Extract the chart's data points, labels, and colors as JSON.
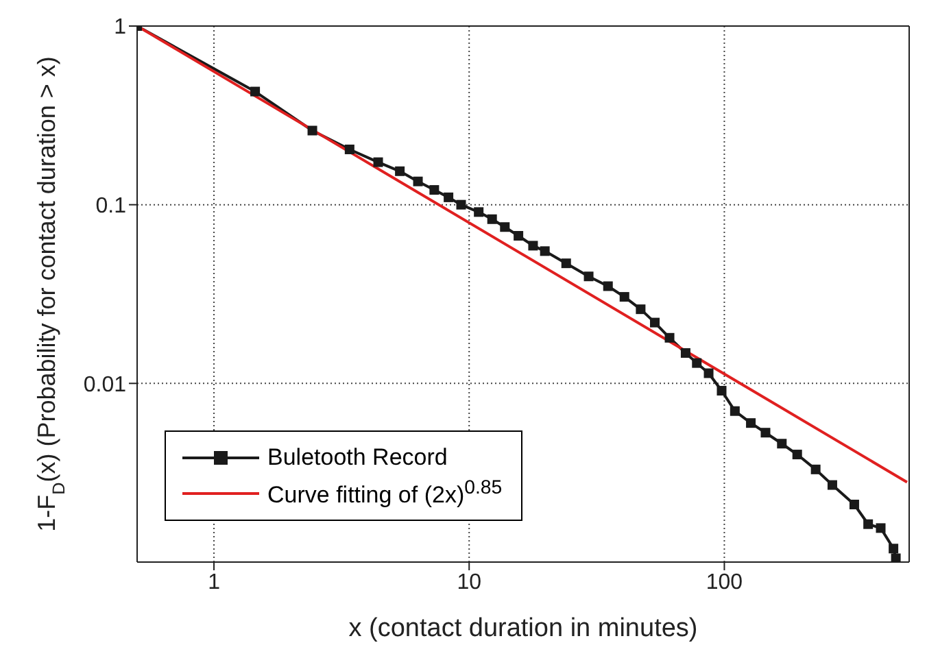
{
  "chart_data": {
    "type": "line",
    "xlabel": "x (contact duration in minutes)",
    "ylabel": "1-F$_{D}$(x)   (Probability for contact duration > x)",
    "log": "xy",
    "xlim": [
      0.5,
      530
    ],
    "ylim": [
      0.001,
      1
    ],
    "xticks": [
      1,
      10,
      100
    ],
    "yticks": [
      0.01,
      0.1,
      1
    ],
    "grid": true,
    "legend": "bottom left",
    "series": [
      {
        "name": "Buletooth Record",
        "color": "#1a1a1a",
        "marker": "square",
        "x": [
          0.5,
          1.45,
          2.43,
          3.4,
          4.4,
          5.35,
          6.3,
          7.3,
          8.3,
          9.3,
          10.9,
          12.3,
          13.8,
          15.6,
          17.8,
          19.8,
          24,
          29.4,
          35,
          40.6,
          47,
          53.4,
          61,
          70.5,
          78,
          86.8,
          97.6,
          110,
          127,
          145,
          168,
          193,
          228,
          265,
          323,
          366,
          410,
          460,
          470
        ],
        "values": [
          1,
          0.43,
          0.26,
          0.204,
          0.173,
          0.154,
          0.135,
          0.121,
          0.11,
          0.1,
          0.091,
          0.083,
          0.075,
          0.067,
          0.059,
          0.055,
          0.047,
          0.0397,
          0.035,
          0.0305,
          0.026,
          0.0219,
          0.018,
          0.0148,
          0.013,
          0.0114,
          0.0091,
          0.007,
          0.006,
          0.0053,
          0.0046,
          0.004,
          0.0033,
          0.0027,
          0.0021,
          0.00163,
          0.00155,
          0.00119,
          0.00105
        ]
      },
      {
        "name": "Curve fitting of (2x)$^{0.85}$",
        "color": "#e02020",
        "marker": "none",
        "x": [
          0.5,
          520
        ],
        "values": [
          1,
          0.0028
        ]
      }
    ]
  }
}
